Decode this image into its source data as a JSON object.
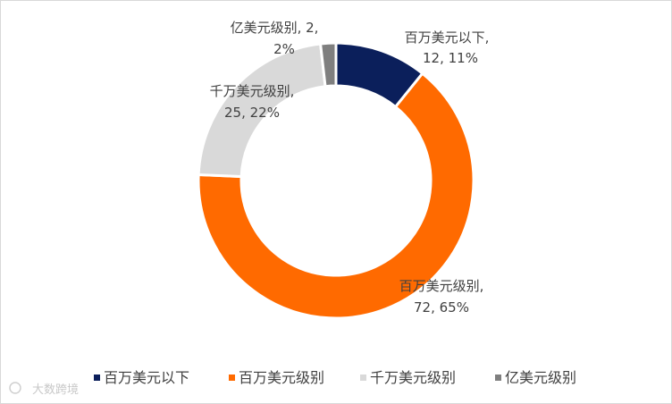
{
  "chart_data": {
    "type": "pie",
    "donut": true,
    "title": "",
    "series": [
      {
        "name": "百万美元以下",
        "value": 12,
        "percent": "11%",
        "color": "#0b1f5b",
        "label_line1": "百万美元以下,",
        "label_line2": "12, 11%"
      },
      {
        "name": "百万美元级别",
        "value": 72,
        "percent": "65%",
        "color": "#ff6a00",
        "label_line1": "百万美元级别,",
        "label_line2": "72, 65%"
      },
      {
        "name": "千万美元级别",
        "value": 25,
        "percent": "22%",
        "color": "#d9d9d9",
        "label_line1": "千万美元级别,",
        "label_line2": "25, 22%"
      },
      {
        "name": "亿美元级别",
        "value": 2,
        "percent": "2%",
        "color": "#7f7f7f",
        "label_line1": "亿美元级别, 2,",
        "label_line2": "2%"
      }
    ],
    "legend_position": "bottom",
    "start_angle_deg": 0,
    "direction": "clockwise"
  },
  "watermark": {
    "text": "大数跨境"
  }
}
